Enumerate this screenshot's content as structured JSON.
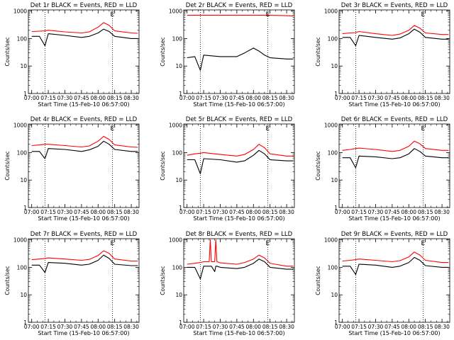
{
  "chart_data": [
    {
      "type": "line",
      "title": "Det 1r BLACK = Events, RED = LLD",
      "xlabel": "Start Time (15-Feb-10 06:57:00)",
      "ylabel": "Counts/sec",
      "x": [
        "07:00",
        "07:07",
        "07:12",
        "07:15",
        "07:30",
        "07:45",
        "07:52",
        "08:00",
        "08:05",
        "08:10",
        "08:15",
        "08:30",
        "08:36"
      ],
      "series": [
        {
          "color": "#ff0000",
          "values": [
            180,
            185,
            190,
            200,
            175,
            160,
            175,
            260,
            380,
            300,
            190,
            160,
            155
          ]
        },
        {
          "color": "#000000",
          "values": [
            120,
            120,
            55,
            150,
            130,
            110,
            120,
            160,
            220,
            180,
            120,
            100,
            100
          ]
        }
      ]
    },
    {
      "type": "line",
      "title": "Det 2r BLACK = Events, RED = LLD",
      "xlabel": "Start Time (15-Feb-10 06:57:00)",
      "ylabel": "Counts/sec",
      "x": [
        "07:00",
        "07:07",
        "07:12",
        "07:15",
        "07:30",
        "07:45",
        "07:52",
        "08:00",
        "08:05",
        "08:10",
        "08:15",
        "08:30",
        "08:36"
      ],
      "series": [
        {
          "color": "#ff0000",
          "values": [
            700,
            700,
            700,
            700,
            700,
            700,
            700,
            700,
            700,
            700,
            700,
            680,
            660
          ]
        },
        {
          "color": "#000000",
          "values": [
            20,
            22,
            7,
            25,
            22,
            22,
            30,
            45,
            35,
            25,
            20,
            18,
            18
          ]
        }
      ]
    },
    {
      "type": "line",
      "title": "Det 3r BLACK = Events, RED = LLD",
      "xlabel": "Start Time (15-Feb-10 06:57:00)",
      "ylabel": "Counts/sec",
      "x": [
        "07:00",
        "07:07",
        "07:12",
        "07:15",
        "07:30",
        "07:45",
        "07:52",
        "08:00",
        "08:05",
        "08:10",
        "08:15",
        "08:30",
        "08:36"
      ],
      "series": [
        {
          "color": "#ff0000",
          "values": [
            150,
            160,
            165,
            180,
            150,
            130,
            145,
            200,
            300,
            240,
            160,
            140,
            140
          ]
        },
        {
          "color": "#000000",
          "values": [
            110,
            110,
            55,
            130,
            110,
            95,
            105,
            150,
            220,
            170,
            110,
            95,
            95
          ]
        }
      ]
    },
    {
      "type": "line",
      "title": "Det 4r BLACK = Events, RED = LLD",
      "xlabel": "Start Time (15-Feb-10 06:57:00)",
      "ylabel": "Counts/sec",
      "x": [
        "07:00",
        "07:07",
        "07:12",
        "07:15",
        "07:30",
        "07:45",
        "07:52",
        "08:00",
        "08:05",
        "08:10",
        "08:15",
        "08:30",
        "08:36"
      ],
      "series": [
        {
          "color": "#ff0000",
          "values": [
            180,
            190,
            200,
            200,
            180,
            160,
            175,
            260,
            390,
            300,
            190,
            160,
            155
          ]
        },
        {
          "color": "#000000",
          "values": [
            110,
            110,
            60,
            140,
            130,
            110,
            125,
            170,
            260,
            200,
            130,
            110,
            110
          ]
        }
      ]
    },
    {
      "type": "line",
      "title": "Det 5r BLACK = Events, RED = LLD",
      "xlabel": "Start Time (15-Feb-10 06:57:00)",
      "ylabel": "Counts/sec",
      "x": [
        "07:00",
        "07:07",
        "07:12",
        "07:15",
        "07:30",
        "07:45",
        "07:52",
        "08:00",
        "08:05",
        "08:10",
        "08:15",
        "08:30",
        "08:36"
      ],
      "series": [
        {
          "color": "#ff0000",
          "values": [
            80,
            90,
            95,
            100,
            85,
            75,
            85,
            130,
            200,
            150,
            90,
            75,
            75
          ]
        },
        {
          "color": "#000000",
          "values": [
            55,
            55,
            17,
            60,
            55,
            45,
            50,
            80,
            120,
            90,
            55,
            50,
            50
          ]
        }
      ]
    },
    {
      "type": "line",
      "title": "Det 6r BLACK = Events, RED = LLD",
      "xlabel": "Start Time (15-Feb-10 06:57:00)",
      "ylabel": "Counts/sec",
      "x": [
        "07:00",
        "07:07",
        "07:12",
        "07:15",
        "07:30",
        "07:45",
        "07:52",
        "08:00",
        "08:05",
        "08:10",
        "08:15",
        "08:30",
        "08:36"
      ],
      "series": [
        {
          "color": "#ff0000",
          "values": [
            120,
            130,
            140,
            145,
            130,
            110,
            120,
            170,
            260,
            210,
            140,
            120,
            120
          ]
        },
        {
          "color": "#000000",
          "values": [
            65,
            65,
            28,
            75,
            70,
            60,
            65,
            90,
            140,
            110,
            75,
            65,
            65
          ]
        }
      ]
    },
    {
      "type": "line",
      "title": "Det 7r BLACK = Events, RED = LLD",
      "xlabel": "Start Time (15-Feb-10 06:57:00)",
      "ylabel": "Counts/sec",
      "x": [
        "07:00",
        "07:07",
        "07:12",
        "07:15",
        "07:30",
        "07:45",
        "07:52",
        "08:00",
        "08:05",
        "08:10",
        "08:15",
        "08:30",
        "08:36"
      ],
      "series": [
        {
          "color": "#ff0000",
          "values": [
            190,
            200,
            210,
            220,
            200,
            180,
            195,
            270,
            400,
            320,
            200,
            170,
            170
          ]
        },
        {
          "color": "#000000",
          "values": [
            120,
            120,
            65,
            150,
            140,
            120,
            130,
            180,
            280,
            210,
            130,
            115,
            115
          ]
        }
      ]
    },
    {
      "type": "line",
      "title": "Det 8r BLACK = Events, RED = LLD",
      "xlabel": "Start Time (15-Feb-10 06:57:00)",
      "ylabel": "Counts/sec",
      "x": [
        "07:00",
        "07:07",
        "07:12",
        "07:15",
        "07:20",
        "07:21",
        "07:22",
        "07:25",
        "07:26",
        "07:27",
        "07:30",
        "07:45",
        "07:52",
        "08:00",
        "08:05",
        "08:10",
        "08:15",
        "08:30",
        "08:36"
      ],
      "series": [
        {
          "color": "#ff0000",
          "values": [
            130,
            140,
            150,
            160,
            160,
            1000,
            160,
            160,
            1000,
            160,
            145,
            130,
            150,
            200,
            280,
            220,
            140,
            110,
            110
          ]
        },
        {
          "color": "#000000",
          "values": [
            100,
            100,
            38,
            110,
            110,
            110,
            110,
            70,
            110,
            110,
            100,
            90,
            100,
            140,
            200,
            160,
            100,
            85,
            85
          ]
        }
      ]
    },
    {
      "type": "line",
      "title": "Det 9r BLACK = Events, RED = LLD",
      "xlabel": "Start Time (15-Feb-10 06:57:00)",
      "ylabel": "Counts/sec",
      "x": [
        "07:00",
        "07:07",
        "07:12",
        "07:15",
        "07:30",
        "07:45",
        "07:52",
        "08:00",
        "08:05",
        "08:10",
        "08:15",
        "08:30",
        "08:36"
      ],
      "series": [
        {
          "color": "#ff0000",
          "values": [
            170,
            180,
            190,
            200,
            180,
            160,
            175,
            240,
            360,
            280,
            180,
            150,
            150
          ]
        },
        {
          "color": "#000000",
          "values": [
            110,
            110,
            55,
            130,
            120,
            100,
            110,
            150,
            230,
            180,
            115,
            100,
            100
          ]
        }
      ]
    }
  ],
  "axes": {
    "y_log": true,
    "ylim": [
      1,
      1100
    ],
    "y_ticks": [
      "1",
      "10",
      "100",
      "1000"
    ],
    "xlim": [
      "06:57",
      "08:37"
    ],
    "x_ticks": [
      "07:00",
      "07:15",
      "07:30",
      "07:45",
      "08:00",
      "08:15",
      "08:30"
    ],
    "vlines": [
      "07:12",
      "08:13"
    ],
    "corner_mark": "E"
  }
}
